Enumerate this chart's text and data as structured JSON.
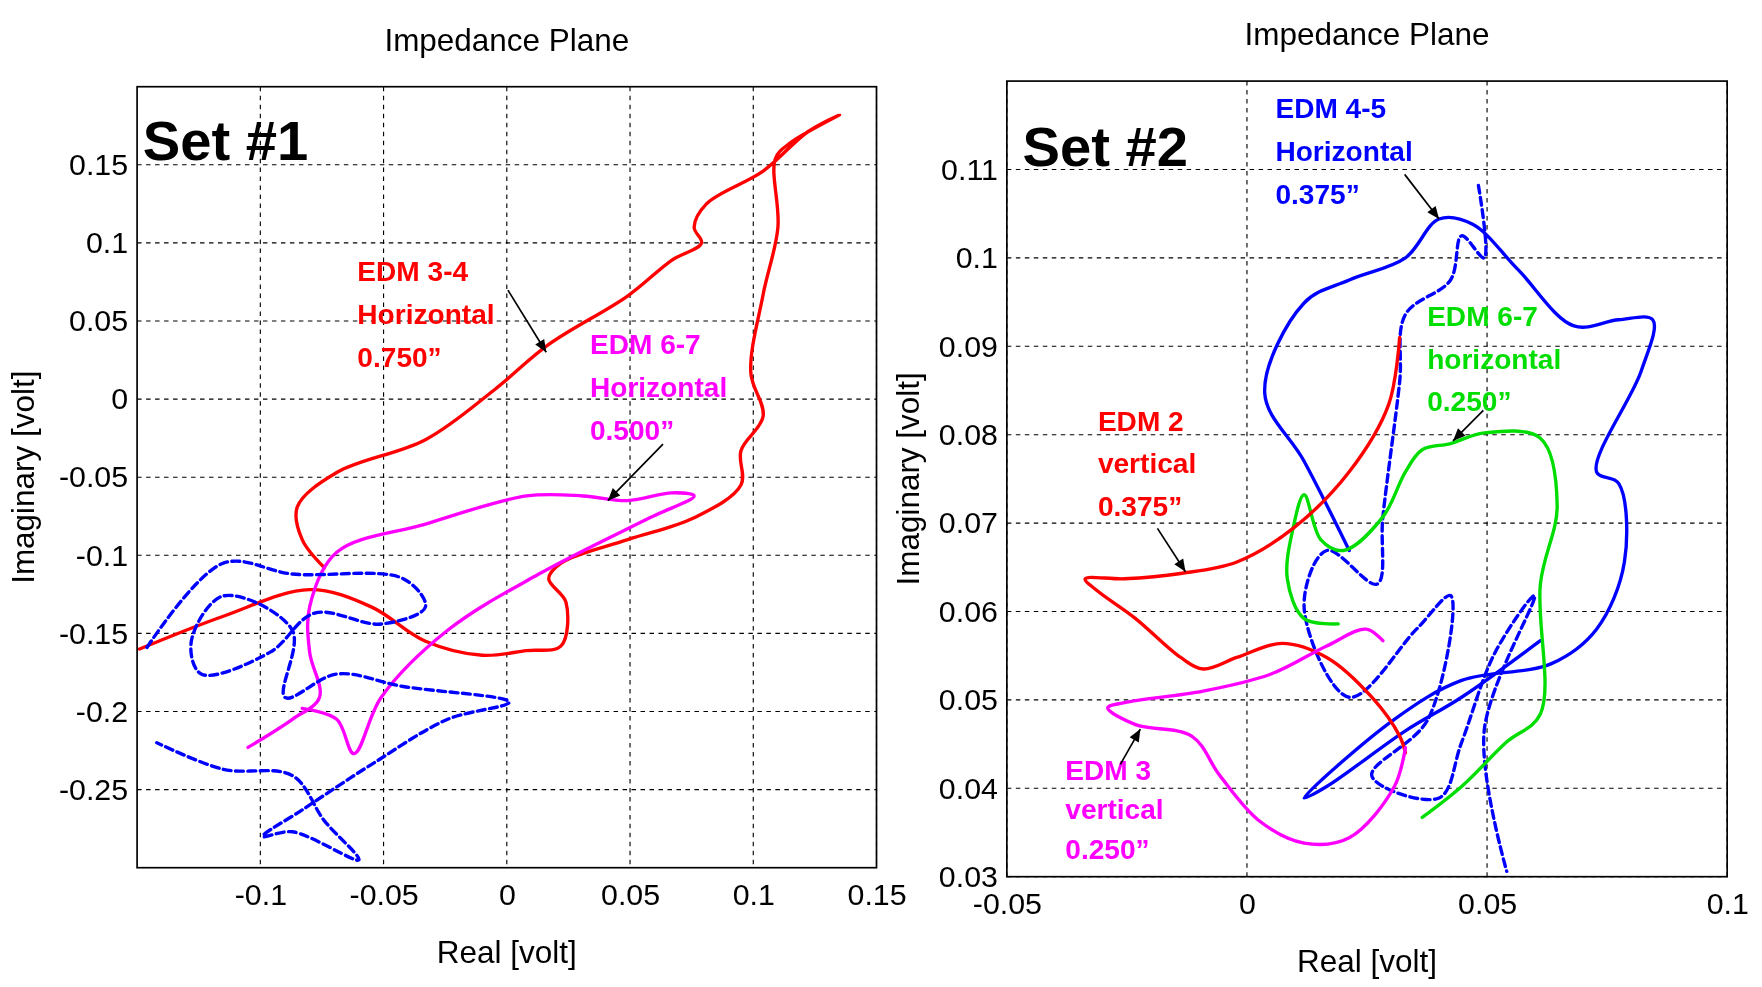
{
  "chart_data": [
    {
      "type": "line",
      "title": "Impedance Plane",
      "xlabel": "Real [volt]",
      "ylabel": "Imaginary [volt]",
      "xlim": [
        -0.15,
        0.15
      ],
      "ylim": [
        -0.3,
        0.2
      ],
      "xticks": [
        -0.1,
        -0.05,
        0,
        0.05,
        0.1,
        0.15
      ],
      "yticks": [
        -0.25,
        -0.2,
        -0.15,
        -0.1,
        -0.05,
        0,
        0.05,
        0.1,
        0.15
      ],
      "grid": true,
      "marker": "none",
      "annotations": [
        "Set #1",
        {
          "text": "EDM 3-4\nHorizontal\n0.750”",
          "x": 0.016,
          "y": 0.03
        },
        {
          "text": "EDM 6-7\nHorizontal\n0.500”",
          "x": 0.041,
          "y": -0.065
        }
      ],
      "series": [
        {
          "color": "#ff0000",
          "line_style": "solid",
          "x": [
            -0.149,
            -0.115,
            -0.08,
            -0.055,
            -0.033,
            -0.01,
            0.008,
            0.022,
            0.024,
            0.017,
            0.022,
            0.049,
            0.076,
            0.095,
            0.095,
            0.104,
            0.099,
            0.104,
            0.11,
            0.109,
            0.115,
            0.135,
            0.122,
            0.104,
            0.081,
            0.076,
            0.079,
            0.067,
            0.049,
            0.017,
            -0.005,
            -0.033,
            -0.069,
            -0.085,
            -0.083,
            -0.074
          ],
          "values": [
            -0.16,
            -0.139,
            -0.122,
            -0.133,
            -0.155,
            -0.164,
            -0.161,
            -0.158,
            -0.13,
            -0.115,
            -0.105,
            -0.09,
            -0.076,
            -0.055,
            -0.033,
            -0.011,
            0.017,
            0.067,
            0.11,
            0.154,
            0.164,
            0.182,
            0.171,
            0.146,
            0.125,
            0.11,
            0.1,
            0.089,
            0.066,
            0.035,
            0.006,
            -0.026,
            -0.047,
            -0.069,
            -0.09,
            -0.108
          ]
        },
        {
          "color": "#ff00ff",
          "line_style": "solid",
          "x": [
            -0.105,
            -0.087,
            -0.076,
            -0.08,
            -0.08,
            -0.069,
            -0.033,
            0.008,
            0.031,
            0.049,
            0.067,
            0.076,
            0.058,
            0.013,
            -0.024,
            -0.051,
            -0.062,
            -0.069,
            -0.083
          ],
          "values": [
            -0.223,
            -0.205,
            -0.191,
            -0.162,
            -0.133,
            -0.098,
            -0.08,
            -0.062,
            -0.062,
            -0.065,
            -0.06,
            -0.062,
            -0.076,
            -0.112,
            -0.148,
            -0.191,
            -0.227,
            -0.205,
            -0.198
          ]
        },
        {
          "color": "#0000ff",
          "line_style": "dashed",
          "x": [
            -0.146,
            -0.115,
            -0.087,
            -0.042,
            -0.033,
            -0.051,
            -0.078,
            -0.096,
            -0.124,
            -0.128,
            -0.115,
            -0.087,
            -0.09,
            -0.069,
            -0.042,
            0.001,
            -0.024,
            -0.055,
            -0.083,
            -0.099,
            -0.087,
            -0.06,
            -0.074,
            -0.087,
            -0.115,
            -0.142
          ],
          "values": [
            -0.159,
            -0.105,
            -0.112,
            -0.115,
            -0.133,
            -0.144,
            -0.137,
            -0.162,
            -0.176,
            -0.155,
            -0.126,
            -0.148,
            -0.191,
            -0.176,
            -0.184,
            -0.194,
            -0.205,
            -0.234,
            -0.263,
            -0.28,
            -0.277,
            -0.295,
            -0.27,
            -0.241,
            -0.237,
            -0.22
          ]
        }
      ]
    },
    {
      "type": "line",
      "title": "Impedance Plane",
      "xlabel": "Real [volt]",
      "ylabel": "Imaginary [volt]",
      "xlim": [
        -0.05,
        0.1
      ],
      "ylim": [
        0.03,
        0.12
      ],
      "xticks": [
        -0.05,
        0,
        0.05,
        0.1
      ],
      "yticks": [
        0.03,
        0.04,
        0.05,
        0.06,
        0.07,
        0.08,
        0.09,
        0.1,
        0.11
      ],
      "grid": true,
      "marker": "none",
      "annotations": [
        "Set #2",
        {
          "text": "EDM 4-5\nHorizontal\n0.375”",
          "x": 0.04,
          "y": 0.1044
        },
        {
          "text": "EDM 6-7\nhorizontal\n0.250”",
          "x": 0.0429,
          "y": 0.0793
        },
        {
          "text": "EDM 2\nvertical\n0.375”",
          "x": -0.0128,
          "y": 0.0645
        },
        {
          "text": "EDM 3\nvertical\n0.250”",
          "x": -0.0222,
          "y": 0.0467
        }
      ],
      "series": [
        {
          "color": "#0000ff",
          "line_style": "solid",
          "x": [
            0.0213,
            0.0119,
            0.0037,
            0.0119,
            0.0213,
            0.033,
            0.04,
            0.047,
            0.0564,
            0.0681,
            0.0774,
            0.0845,
            0.0821,
            0.0728,
            0.0774,
            0.0786,
            0.0728,
            0.0634,
            0.0447,
            0.0307,
            0.0119,
            0.0166,
            0.033,
            0.0447,
            0.0611
          ],
          "values": [
            0.0669,
            0.077,
            0.0847,
            0.0949,
            0.0975,
            0.1,
            0.1044,
            0.1038,
            0.0987,
            0.0923,
            0.093,
            0.093,
            0.0872,
            0.0758,
            0.0745,
            0.0656,
            0.058,
            0.0541,
            0.0522,
            0.0478,
            0.0389,
            0.0402,
            0.0465,
            0.0503,
            0.0567
          ]
        },
        {
          "color": "#0000ff",
          "line_style": "dashed",
          "x": [
            0.0482,
            0.0494,
            0.0447,
            0.0424,
            0.033,
            0.0318,
            0.0283,
            0.0271,
            0.0166,
            0.0119,
            0.0213,
            0.0353,
            0.0424,
            0.0377,
            0.026,
            0.04,
            0.0447,
            0.0517,
            0.0599,
            0.0494,
            0.0541
          ],
          "values": [
            0.1082,
            0.1,
            0.1025,
            0.0975,
            0.0936,
            0.086,
            0.0707,
            0.0631,
            0.0669,
            0.0605,
            0.0503,
            0.058,
            0.0618,
            0.0478,
            0.0414,
            0.0389,
            0.0452,
            0.0554,
            0.0618,
            0.0465,
            0.0306
          ]
        },
        {
          "color": "#00dd00",
          "line_style": "solid",
          "x": [
            0.0365,
            0.0447,
            0.054,
            0.0611,
            0.0611,
            0.0646,
            0.0611,
            0.0494,
            0.0424,
            0.0365,
            0.033,
            0.0283,
            0.0201,
            0.0154,
            0.0119,
            0.0096,
            0.0084,
            0.0119,
            0.019
          ],
          "values": [
            0.0367,
            0.0402,
            0.0452,
            0.0484,
            0.0631,
            0.072,
            0.0796,
            0.0802,
            0.079,
            0.0783,
            0.0758,
            0.0707,
            0.0669,
            0.0681,
            0.0732,
            0.0694,
            0.0637,
            0.0592,
            0.0586
          ]
        },
        {
          "color": "#ff0000",
          "line_style": "solid",
          "x": [
            0.0318,
            0.0295,
            0.0213,
            0.0096,
            -0.0021,
            -0.0138,
            -0.0255,
            -0.0337,
            -0.0313,
            -0.0232,
            -0.0138,
            -0.0091,
            -0.0021,
            0.0073,
            0.0166,
            0.026,
            0.0318,
            0.033
          ],
          "values": [
            0.091,
            0.0834,
            0.0758,
            0.0694,
            0.0656,
            0.0643,
            0.0637,
            0.0637,
            0.0624,
            0.0592,
            0.0548,
            0.0535,
            0.0548,
            0.0564,
            0.0548,
            0.0503,
            0.0459,
            0.044
          ]
        },
        {
          "color": "#ff00ff",
          "line_style": "solid",
          "x": [
            0.0283,
            0.0248,
            0.0166,
            0.0049,
            -0.0091,
            -0.0255,
            -0.029,
            -0.0232,
            -0.0115,
            -0.0056,
            0.0026,
            0.0119,
            0.0213,
            0.0307,
            0.033
          ],
          "values": [
            0.0567,
            0.058,
            0.0561,
            0.0529,
            0.051,
            0.0497,
            0.0491,
            0.0472,
            0.0459,
            0.0414,
            0.0363,
            0.0338,
            0.0344,
            0.0402,
            0.0446
          ]
        }
      ]
    }
  ]
}
